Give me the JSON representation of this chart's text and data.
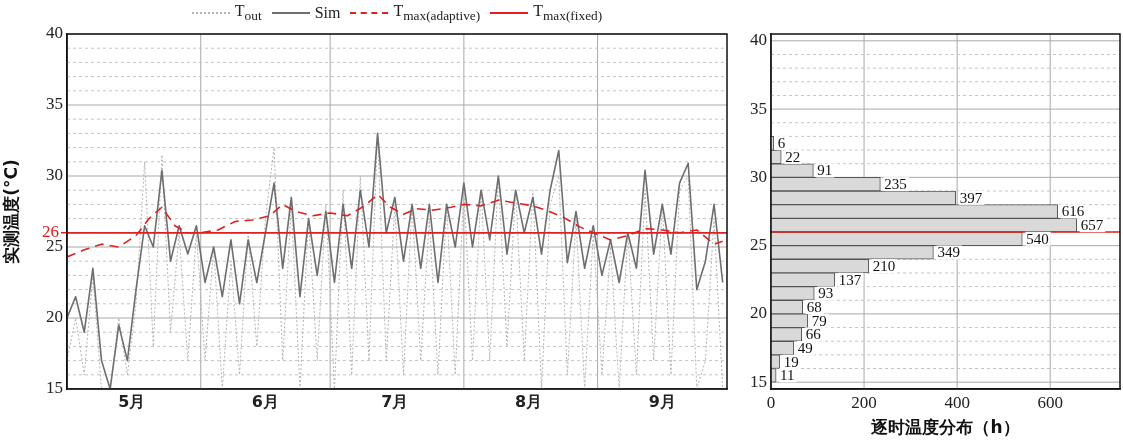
{
  "chart_data": [
    {
      "type": "line",
      "ylabel": "实测温度(°C)",
      "legend": "top",
      "marker": "none",
      "grid": true,
      "xlim": [
        "--05-01",
        "--10-01"
      ],
      "xticks": [
        {
          "value": "--05-16",
          "label": "5月"
        },
        {
          "value": "--06-01",
          "label": null
        },
        {
          "value": "--06-16",
          "label": "6月"
        },
        {
          "value": "--07-01",
          "label": null
        },
        {
          "value": "--07-16",
          "label": "7月"
        },
        {
          "value": "--08-01",
          "label": null
        },
        {
          "value": "--08-16",
          "label": "8月"
        },
        {
          "value": "--09-01",
          "label": null
        },
        {
          "value": "--09-16",
          "label": "9月"
        }
      ],
      "ylim": [
        15,
        40
      ],
      "yticks": [
        15,
        {
          "value": 16,
          "label": null
        },
        {
          "value": 17,
          "label": null
        },
        {
          "value": 18,
          "label": null
        },
        {
          "value": 19,
          "label": null
        },
        20,
        {
          "value": 21,
          "label": null
        },
        {
          "value": 22,
          "label": null
        },
        {
          "value": 23,
          "label": null
        },
        {
          "value": 24,
          "label": null
        },
        25,
        {
          "value": 26,
          "label": null
        },
        {
          "value": 27,
          "label": null
        },
        {
          "value": 28,
          "label": null
        },
        {
          "value": 29,
          "label": null
        },
        30,
        {
          "value": 31,
          "label": null
        },
        {
          "value": 32,
          "label": null
        },
        {
          "value": 33,
          "label": null
        },
        {
          "value": 34,
          "label": null
        },
        35,
        {
          "value": 36,
          "label": null
        },
        {
          "value": 37,
          "label": null
        },
        {
          "value": 38,
          "label": null
        },
        {
          "value": 39,
          "label": null
        },
        40
      ],
      "ref_lines": [
        {
          "axis": "y",
          "value": 26,
          "label": "26",
          "color": "#e02020"
        }
      ],
      "x": [
        "--05-01",
        "--05-03",
        "--05-05",
        "--05-07",
        "--05-09",
        "--05-11",
        "--05-13",
        "--05-15",
        "--05-17",
        "--05-19",
        "--05-21",
        "--05-23",
        "--05-25",
        "--05-27",
        "--05-29",
        "--05-31",
        "--06-02",
        "--06-04",
        "--06-06",
        "--06-08",
        "--06-10",
        "--06-12",
        "--06-14",
        "--06-16",
        "--06-18",
        "--06-20",
        "--06-22",
        "--06-24",
        "--06-26",
        "--06-28",
        "--06-30",
        "--07-02",
        "--07-04",
        "--07-06",
        "--07-08",
        "--07-10",
        "--07-12",
        "--07-14",
        "--07-16",
        "--07-18",
        "--07-20",
        "--07-22",
        "--07-24",
        "--07-26",
        "--07-28",
        "--07-30",
        "--08-01",
        "--08-03",
        "--08-05",
        "--08-07",
        "--08-09",
        "--08-11",
        "--08-13",
        "--08-15",
        "--08-17",
        "--08-19",
        "--08-21",
        "--08-23",
        "--08-25",
        "--08-27",
        "--08-29",
        "--08-31",
        "--09-02",
        "--09-04",
        "--09-06",
        "--09-08",
        "--09-10",
        "--09-12",
        "--09-14",
        "--09-16",
        "--09-18",
        "--09-20",
        "--09-22",
        "--09-24",
        "--09-26",
        "--09-28",
        "--09-30"
      ],
      "series": [
        {
          "name": "T$_{out}$",
          "type": "line",
          "line_style": "dotted",
          "color": "#b4b4b4",
          "values": [
            17,
            20,
            16,
            23,
            15,
            15,
            20,
            16,
            21,
            31,
            18,
            31.5,
            19,
            26,
            17,
            26,
            17,
            25,
            15,
            24,
            16,
            26,
            18,
            27,
            32,
            17,
            28,
            15,
            27,
            17,
            28,
            15,
            29,
            16,
            30,
            17,
            33,
            17,
            28,
            16,
            28,
            17,
            27,
            16,
            28,
            16,
            29,
            17,
            29,
            17,
            30,
            18,
            29,
            17,
            29,
            15,
            28,
            30,
            16,
            27,
            15,
            26,
            16,
            25,
            15,
            26,
            16,
            29,
            17,
            28,
            16,
            29,
            30,
            15,
            17,
            27,
            15
          ]
        },
        {
          "name": "Sim",
          "type": "line",
          "line_style": "solid",
          "color": "#6e6e6e",
          "values": [
            20,
            21.5,
            19,
            23.5,
            17,
            15,
            19.5,
            17,
            22,
            26.5,
            25,
            30.4,
            24,
            26.5,
            24.5,
            26.5,
            22.5,
            25,
            21.5,
            25.5,
            21,
            25.5,
            22.5,
            26,
            29.5,
            23.5,
            28.5,
            21.5,
            27,
            23,
            27.5,
            22.5,
            28,
            23.5,
            29,
            25,
            33,
            26,
            28.5,
            24,
            28,
            23.5,
            28,
            22.5,
            28,
            25,
            29.5,
            25,
            29,
            25.5,
            30,
            24.5,
            29,
            26,
            28.5,
            24.5,
            29,
            31.8,
            23.9,
            27.5,
            23.5,
            26.5,
            23,
            25.5,
            22.5,
            26,
            23.5,
            30.4,
            24.5,
            28,
            24.5,
            29.5,
            30.9,
            22,
            24,
            28,
            22.5
          ]
        },
        {
          "name": "T$_{max(adaptive)}$",
          "type": "line",
          "line_style": "dashed",
          "color": "#e02020",
          "x": [
            "--05-01",
            "--05-05",
            "--05-09",
            "--05-13",
            "--05-17",
            "--05-20",
            "--05-23",
            "--05-26",
            "--05-29",
            "--06-01",
            "--06-05",
            "--06-09",
            "--06-13",
            "--06-17",
            "--06-20",
            "--06-23",
            "--06-27",
            "--07-01",
            "--07-05",
            "--07-09",
            "--07-12",
            "--07-15",
            "--07-18",
            "--07-21",
            "--07-25",
            "--07-29",
            "--08-01",
            "--08-05",
            "--08-09",
            "--08-13",
            "--08-17",
            "--08-20",
            "--08-24",
            "--08-28",
            "--08-31",
            "--09-04",
            "--09-08",
            "--09-12",
            "--09-16",
            "--09-20",
            "--09-24",
            "--09-28",
            "--09-30"
          ],
          "values": [
            24.3,
            24.8,
            25.2,
            25,
            25.8,
            27,
            27.8,
            26.5,
            26,
            26,
            26.2,
            26.8,
            26.9,
            27.2,
            28,
            27.5,
            27.2,
            27.4,
            27.2,
            27.9,
            28.7,
            27.8,
            27.3,
            27.7,
            27.6,
            27.8,
            28,
            27.9,
            28.3,
            28.1,
            27.9,
            27.6,
            27.1,
            26.4,
            26,
            25.5,
            25.8,
            26.3,
            26.2,
            26,
            26.2,
            25.2,
            25.4
          ]
        },
        {
          "name": "T$_{max(fixed)}$",
          "type": "line",
          "line_style": "solid",
          "color": "#e02020",
          "x": [
            "--05-01",
            "--10-01"
          ],
          "values": [
            26,
            26
          ]
        }
      ]
    },
    {
      "type": "histogram",
      "orientation": "horizontal",
      "xlabel": "逐时温度分布（h）",
      "grid": true,
      "data_labels": true,
      "color": "#d9d9d9",
      "bins": [
        15,
        16,
        17,
        18,
        19,
        20,
        21,
        22,
        23,
        24,
        25,
        26,
        27,
        28,
        29,
        30,
        31,
        32,
        33
      ],
      "values": [
        11,
        19,
        49,
        66,
        79,
        68,
        93,
        137,
        210,
        349,
        540,
        657,
        616,
        397,
        235,
        91,
        22,
        6
      ],
      "xlim": [
        0,
        750
      ],
      "xticks": [
        0,
        200,
        400,
        600
      ],
      "ylim": [
        15,
        40
      ],
      "yticks": [
        15,
        {
          "value": 16,
          "label": null
        },
        {
          "value": 17,
          "label": null
        },
        {
          "value": 18,
          "label": null
        },
        {
          "value": 19,
          "label": null
        },
        20,
        {
          "value": 21,
          "label": null
        },
        {
          "value": 22,
          "label": null
        },
        {
          "value": 23,
          "label": null
        },
        {
          "value": 24,
          "label": null
        },
        25,
        {
          "value": 26,
          "label": null
        },
        {
          "value": 27,
          "label": null
        },
        {
          "value": 28,
          "label": null
        },
        {
          "value": 29,
          "label": null
        },
        30,
        {
          "value": 31,
          "label": null
        },
        {
          "value": 32,
          "label": null
        },
        {
          "value": 33,
          "label": null
        },
        {
          "value": 34,
          "label": null
        },
        35,
        {
          "value": 36,
          "label": null
        },
        {
          "value": 37,
          "label": null
        },
        {
          "value": 38,
          "label": null
        },
        {
          "value": 39,
          "label": null
        },
        40
      ],
      "ref_lines": [
        {
          "axis": "y",
          "value": 26,
          "color": "#e02020"
        }
      ]
    }
  ]
}
